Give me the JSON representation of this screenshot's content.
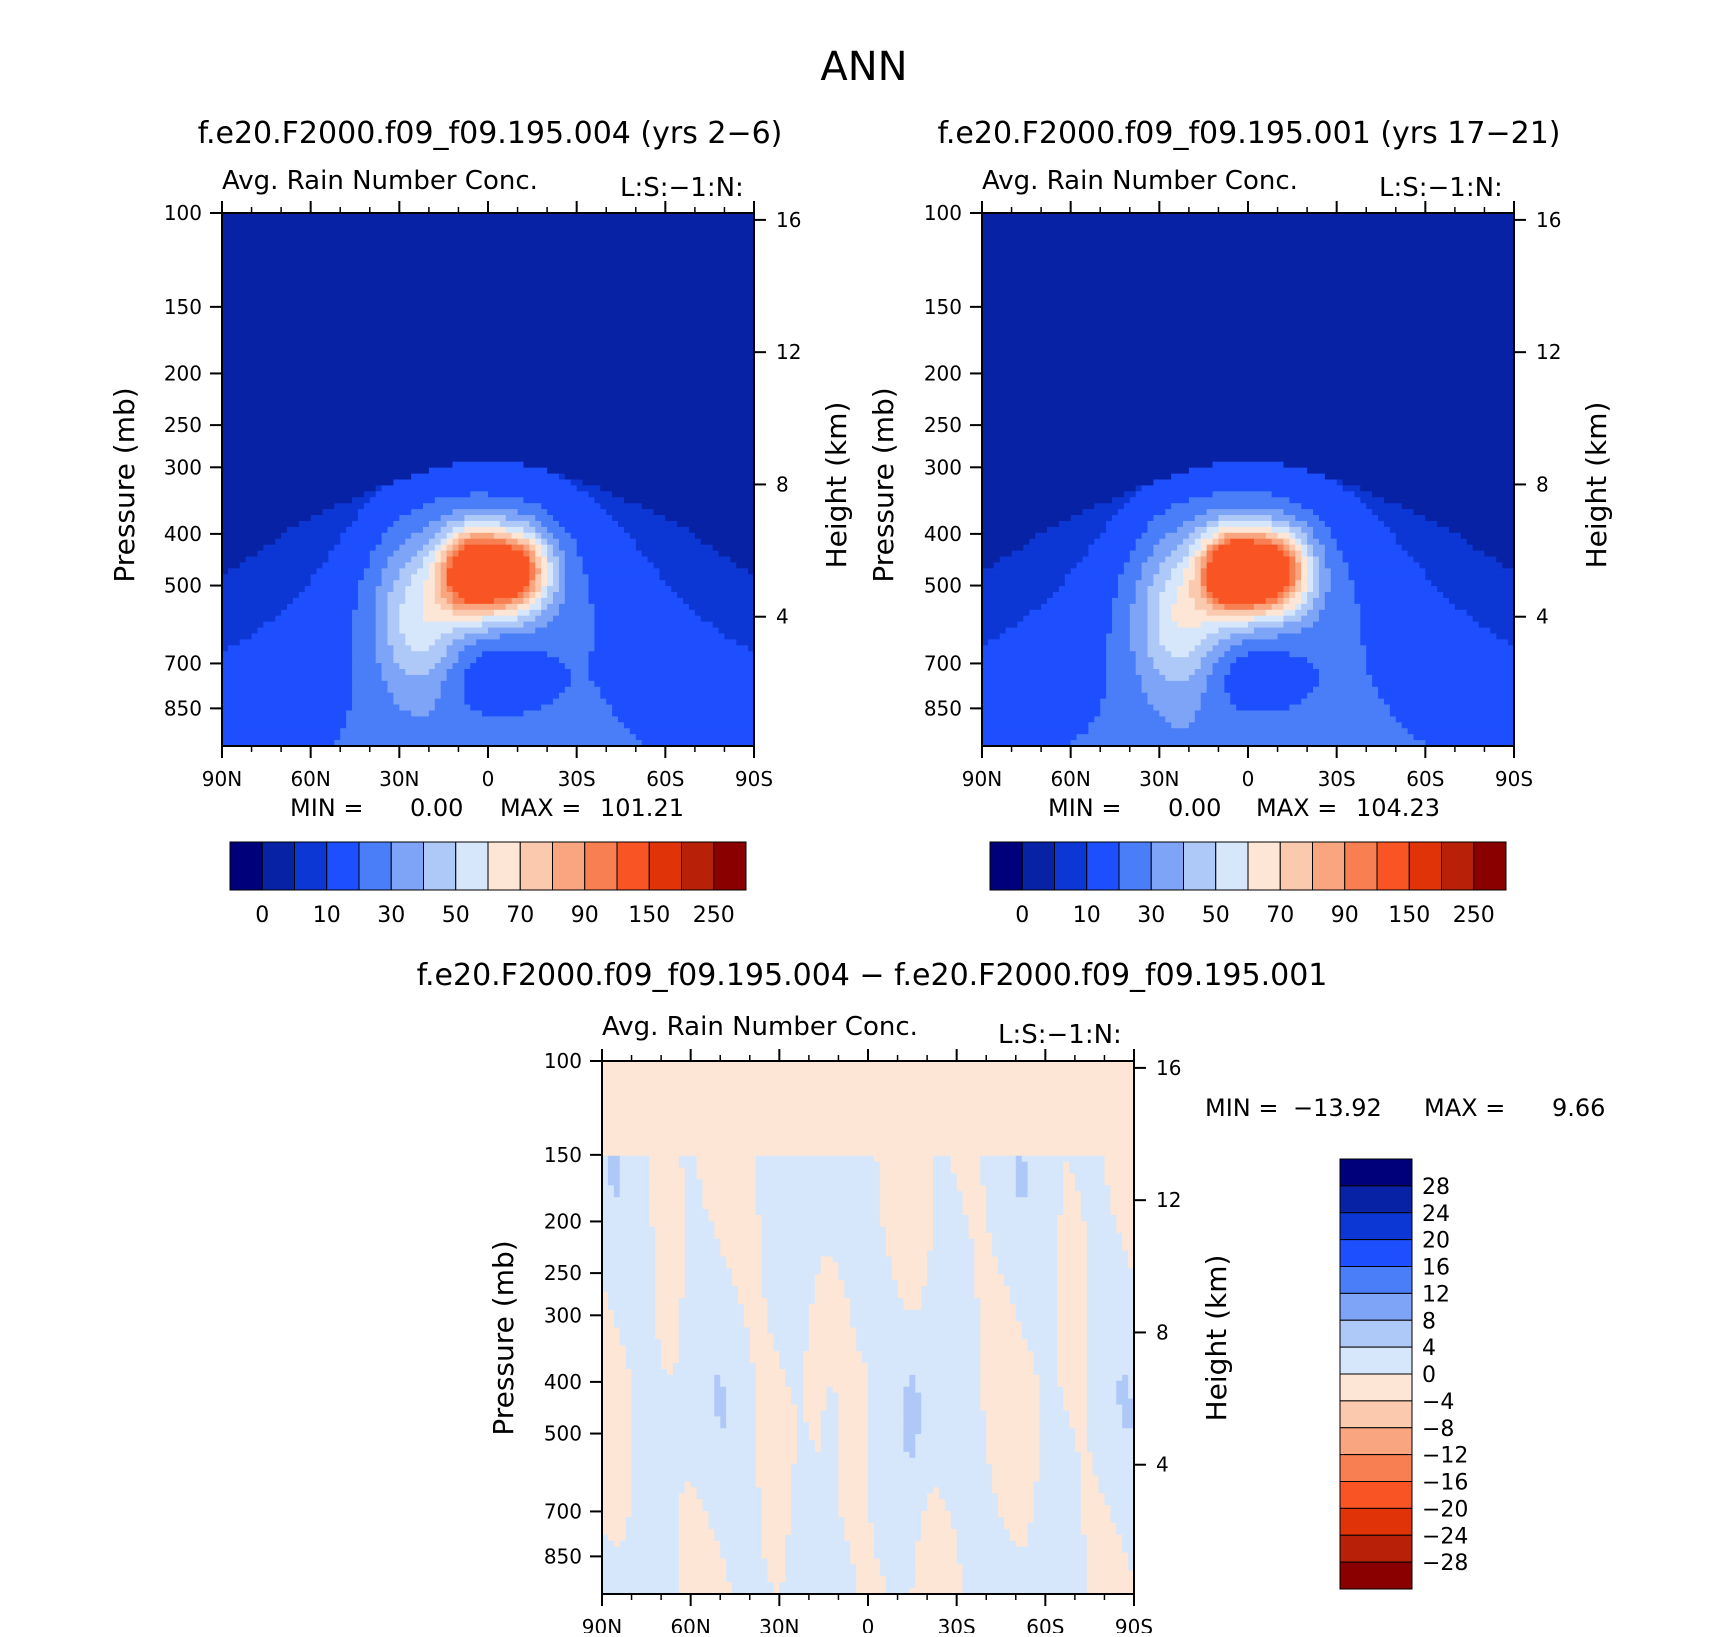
{
  "figure": {
    "title": "ANN"
  },
  "chart_data": [
    {
      "type": "heatmap",
      "title": "f.e20.F2000.f09_f09.195.004 (yrs 2-6)",
      "variable": "Avg. Rain Number Conc.",
      "tag": "L:S:-1:N:",
      "ylabel": "Pressure (mb)",
      "ylabel_right": "Height (km)",
      "xticks": [
        "90N",
        "60N",
        "30N",
        "0",
        "30S",
        "60S",
        "90S"
      ],
      "pressure_levels": [
        100,
        150,
        200,
        250,
        300,
        400,
        500,
        700,
        850
      ],
      "height_levels": [
        16,
        12,
        8,
        4
      ],
      "xlim": [
        "90N",
        "90S"
      ],
      "ylim": [
        1000,
        100
      ],
      "y_scale": "log pressure",
      "min_label": "MIN =",
      "min_value": "0.00",
      "max_label": "MAX =",
      "max_value": "101.21",
      "contour_levels": [
        0,
        5,
        10,
        20,
        30,
        40,
        50,
        60,
        70,
        80,
        90,
        100,
        150,
        200,
        250
      ],
      "colorbar_labels": [
        "0",
        "10",
        "30",
        "50",
        "70",
        "90",
        "150",
        "250"
      ]
    },
    {
      "type": "heatmap",
      "title": "f.e20.F2000.f09_f09.195.001 (yrs 17-21)",
      "variable": "Avg. Rain Number Conc.",
      "tag": "L:S:-1:N:",
      "ylabel": "Pressure (mb)",
      "ylabel_right": "Height (km)",
      "xticks": [
        "90N",
        "60N",
        "30N",
        "0",
        "30S",
        "60S",
        "90S"
      ],
      "pressure_levels": [
        100,
        150,
        200,
        250,
        300,
        400,
        500,
        700,
        850
      ],
      "height_levels": [
        16,
        12,
        8,
        4
      ],
      "xlim": [
        "90N",
        "90S"
      ],
      "ylim": [
        1000,
        100
      ],
      "y_scale": "log pressure",
      "min_label": "MIN =",
      "min_value": "0.00",
      "max_label": "MAX =",
      "max_value": "104.23",
      "contour_levels": [
        0,
        5,
        10,
        20,
        30,
        40,
        50,
        60,
        70,
        80,
        90,
        100,
        150,
        200,
        250
      ],
      "colorbar_labels": [
        "0",
        "10",
        "30",
        "50",
        "70",
        "90",
        "150",
        "250"
      ]
    },
    {
      "type": "heatmap",
      "title": "f.e20.F2000.f09_f09.195.004 - f.e20.F2000.f09_f09.195.001",
      "variable": "Avg. Rain Number Conc.",
      "tag": "L:S:-1:N:",
      "ylabel": "Pressure (mb)",
      "ylabel_right": "Height (km)",
      "xticks": [
        "90N",
        "60N",
        "30N",
        "0",
        "30S",
        "60S",
        "90S"
      ],
      "pressure_levels": [
        100,
        150,
        200,
        250,
        300,
        400,
        500,
        700,
        850
      ],
      "height_levels": [
        16,
        12,
        8,
        4
      ],
      "xlim": [
        "90N",
        "90S"
      ],
      "ylim": [
        1000,
        100
      ],
      "y_scale": "log pressure",
      "min_label": "MIN =",
      "min_value": "-13.92",
      "max_label": "MAX =",
      "max_value": "9.66",
      "contour_levels": [
        -28,
        -24,
        -20,
        -16,
        -12,
        -8,
        -4,
        0,
        4,
        8,
        12,
        16,
        20,
        24,
        28
      ],
      "colorbar_labels": [
        "28",
        "24",
        "20",
        "16",
        "12",
        "8",
        "4",
        "0",
        "-4",
        "-8",
        "-12",
        "-16",
        "-20",
        "-24",
        "-28"
      ]
    }
  ],
  "colors": {
    "mean_palette": [
      "#00007a",
      "#0722a4",
      "#0d37d4",
      "#1e4fff",
      "#4a7df8",
      "#7ea4f8",
      "#aec9f8",
      "#d6e6fb",
      "#fde6d6",
      "#fbc9ae",
      "#f9a57f",
      "#f77f52",
      "#f95524",
      "#e03308",
      "#b82008",
      "#8a0000"
    ],
    "diff_palette": [
      "#8a0000",
      "#b82008",
      "#e03308",
      "#f95524",
      "#f77f52",
      "#f9a57f",
      "#fbc9ae",
      "#fde6d6",
      "#d6e6fb",
      "#aec9f8",
      "#7ea4f8",
      "#4a7df8",
      "#1e4fff",
      "#0d37d4",
      "#0722a4",
      "#00007a"
    ]
  }
}
